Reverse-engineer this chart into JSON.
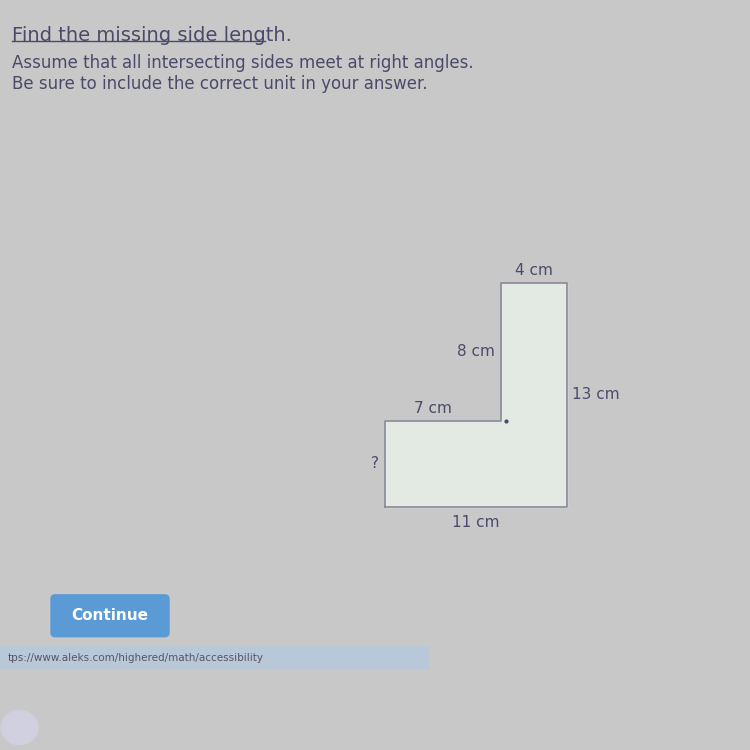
{
  "title": "Find the missing side length.",
  "subtitle_line1": "Assume that all intersecting sides meet at right angles.",
  "subtitle_line2": "Be sure to include the correct unit in your answer.",
  "bg_color": "#c8c8c8",
  "shape_fill": "#e8f0e8",
  "shape_edge_color": "#888899",
  "text_color": "#4a4a6a",
  "label_fontsize": 11,
  "title_fontsize": 14,
  "subtitle_fontsize": 12,
  "button_text": "Continue",
  "button_color": "#5b9bd5",
  "button_text_color": "white",
  "url_text": "tps://www.aleks.com/highered/math/accessibility",
  "url_bg": "#b8c8d8",
  "bottom_bar_color": "#7a6a90",
  "black_bar_color": "#1a1a2a",
  "circle_color": "#d0d0e0",
  "google_color": "#cc4444"
}
